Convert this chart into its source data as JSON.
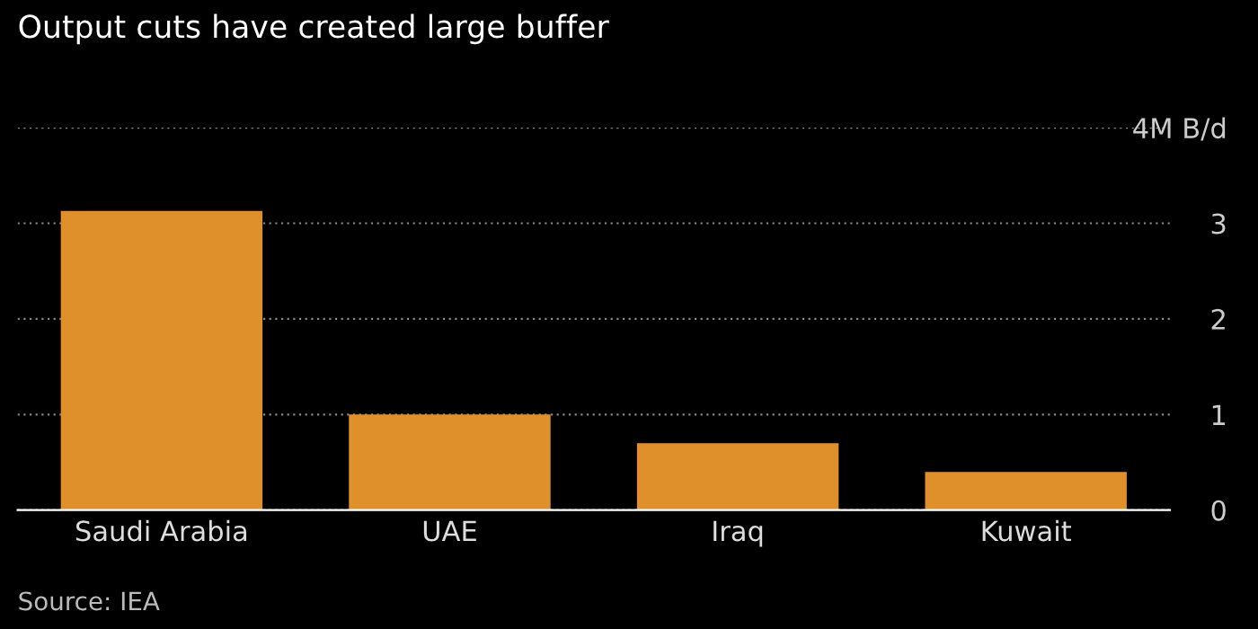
{
  "chart_data": {
    "type": "bar",
    "title": "Output cuts have created large buffer",
    "categories": [
      "Saudi Arabia",
      "UAE",
      "Iraq",
      "Kuwait"
    ],
    "values": [
      3.13,
      1.0,
      0.7,
      0.4
    ],
    "color": "#e0902a",
    "ylim": [
      0,
      4
    ],
    "yticks": [
      0,
      1,
      2,
      3,
      {
        "value": 4,
        "label": "4M B/d"
      }
    ],
    "grid": "y",
    "annotations": [
      "Source: IEA"
    ]
  }
}
